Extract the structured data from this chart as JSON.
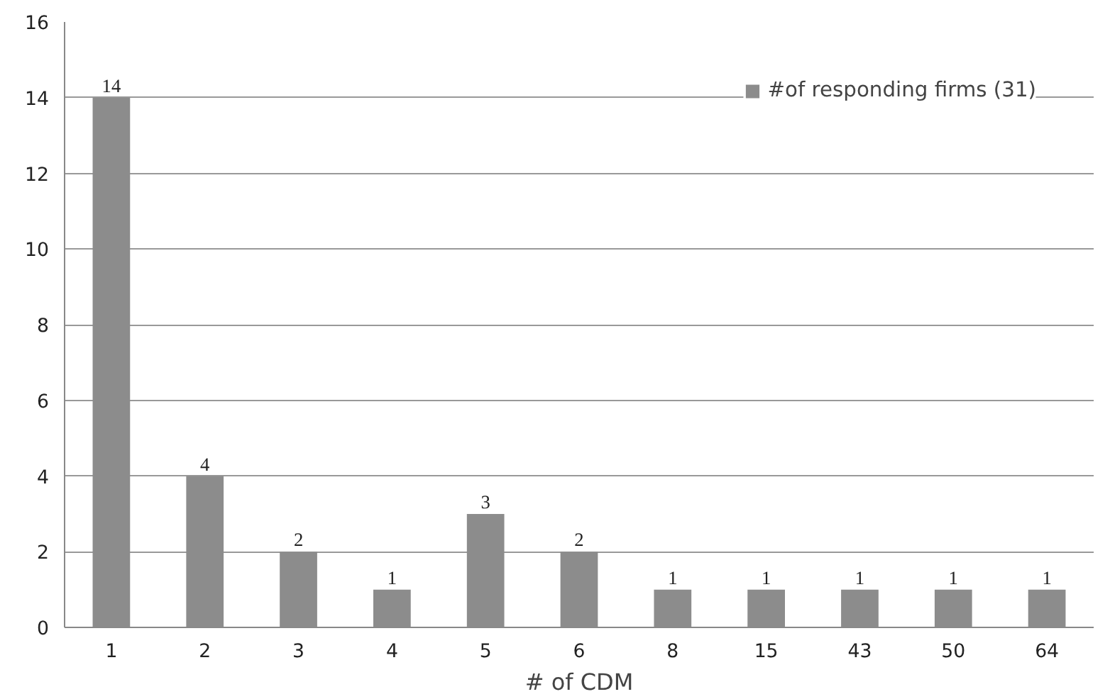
{
  "chart_data": {
    "type": "bar",
    "xlabel": "# of CDM",
    "categories": [
      "1",
      "2",
      "3",
      "4",
      "5",
      "6",
      "8",
      "15",
      "43",
      "50",
      "64"
    ],
    "series": [
      {
        "name": "#of responding firms (31)",
        "color": "#8c8c8c",
        "values": [
          14,
          4,
          2,
          1,
          3,
          2,
          1,
          1,
          1,
          1,
          1
        ]
      }
    ],
    "ylim": [
      0,
      16
    ],
    "yticks": [
      0,
      2,
      4,
      6,
      8,
      10,
      12,
      14,
      16
    ],
    "grid": "y",
    "legend": "top right",
    "data_labels": true
  }
}
